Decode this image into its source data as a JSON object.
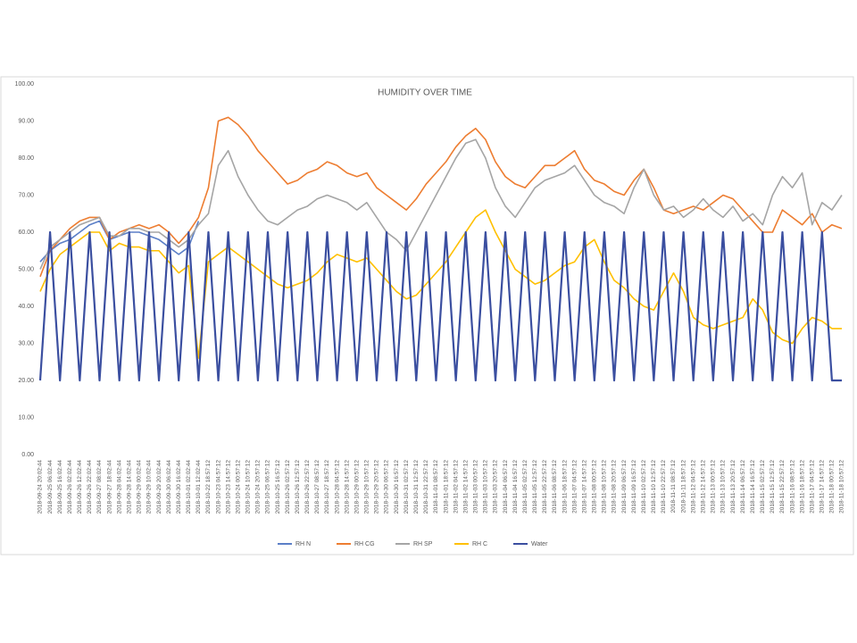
{
  "chart_data": {
    "type": "line",
    "title": "HUMIDITY OVER TIME",
    "categories": [
      "2018-09-24 20:02:44",
      "2018-09-25 06:02:44",
      "2018-09-25 16:02:44",
      "2018-09-26 02:02:44",
      "2018-09-26 12:02:44",
      "2018-09-26 22:02:44",
      "2018-09-27 08:02:44",
      "2018-09-27 18:02:44",
      "2018-09-28 04:02:44",
      "2018-09-28 14:02:44",
      "2018-09-29 00:02:44",
      "2018-09-29 10:02:44",
      "2018-09-29 20:02:44",
      "2018-09-30 06:02:44",
      "2018-09-30 16:02:44",
      "2018-10-01 02:02:44",
      "2018-10-01 12:02:44",
      "2018-10-22 18:57:12",
      "2018-10-23 04:57:12",
      "2018-10-23 14:57:12",
      "2018-10-24 00:57:12",
      "2018-10-24 10:57:12",
      "2018-10-24 20:57:12",
      "2018-10-25 06:57:12",
      "2018-10-25 16:57:12",
      "2018-10-26 02:57:12",
      "2018-10-26 12:57:12",
      "2018-10-26 22:57:12",
      "2018-10-27 08:57:12",
      "2018-10-27 18:57:12",
      "2018-10-28 04:57:12",
      "2018-10-28 14:57:12",
      "2018-10-29 00:57:12",
      "2018-10-29 10:57:12",
      "2018-10-29 20:57:12",
      "2018-10-30 06:57:12",
      "2018-10-30 16:57:12",
      "2018-10-31 02:57:12",
      "2018-10-31 12:57:12",
      "2018-10-31 22:57:12",
      "2018-11-01 08:57:12",
      "2018-11-01 18:57:12",
      "2018-11-02 04:57:12",
      "2018-11-02 14:57:12",
      "2018-11-03 00:57:12",
      "2018-11-03 10:57:12",
      "2018-11-03 20:57:12",
      "2018-11-04 06:57:12",
      "2018-11-04 16:57:12",
      "2018-11-05 02:57:12",
      "2018-11-05 12:57:12",
      "2018-11-05 22:57:12",
      "2018-11-06 08:57:12",
      "2018-11-06 18:57:12",
      "2018-11-07 04:57:12",
      "2018-11-07 14:57:12",
      "2018-11-08 00:57:12",
      "2018-11-08 10:57:12",
      "2018-11-08 20:57:12",
      "2018-11-09 06:57:12",
      "2018-11-09 16:57:12",
      "2018-11-10 02:57:12",
      "2018-11-10 12:57:12",
      "2018-11-10 22:57:12",
      "2018-11-11 08:57:12",
      "2018-11-11 18:57:12",
      "2018-11-12 04:57:12",
      "2018-11-12 14:57:12",
      "2018-11-13 00:57:12",
      "2018-11-13 10:57:12",
      "2018-11-13 20:57:12",
      "2018-11-14 06:57:12",
      "2018-11-14 16:57:12",
      "2018-11-15 02:57:12",
      "2018-11-15 12:57:12",
      "2018-11-15 22:57:12",
      "2018-11-16 08:57:12",
      "2018-11-16 18:57:12",
      "2018-11-17 04:57:12",
      "2018-11-17 14:57:12",
      "2018-11-18 00:57:12",
      "2018-11-18 10:57:12"
    ],
    "series": [
      {
        "name": "RH N",
        "color": "#5b7fc7",
        "values": [
          52,
          55,
          57,
          58,
          60,
          62,
          63,
          58,
          59,
          60,
          60,
          59,
          58,
          56,
          54,
          56,
          63,
          null,
          null,
          null,
          null,
          null,
          null,
          null,
          null,
          null,
          null,
          null,
          null,
          null,
          null,
          null,
          null,
          null,
          null,
          null,
          null,
          null,
          null,
          null,
          null,
          null,
          null,
          null,
          null,
          null,
          null,
          null,
          null,
          null,
          null,
          null,
          null,
          null,
          null,
          null,
          null,
          null,
          null,
          null,
          null,
          null,
          null,
          null,
          null,
          null,
          null,
          null,
          null,
          null,
          null,
          null,
          null,
          null,
          null,
          null,
          null,
          null,
          null,
          null,
          null,
          null
        ]
      },
      {
        "name": "RH CG",
        "color": "#ed7d31",
        "values": [
          48,
          55,
          58,
          61,
          63,
          64,
          64,
          58,
          60,
          61,
          62,
          61,
          62,
          60,
          57,
          60,
          64,
          72,
          90,
          91,
          89,
          86,
          82,
          79,
          76,
          73,
          74,
          76,
          77,
          79,
          78,
          76,
          75,
          76,
          72,
          70,
          68,
          66,
          69,
          73,
          76,
          79,
          83,
          86,
          88,
          85,
          79,
          75,
          73,
          72,
          75,
          78,
          78,
          80,
          82,
          77,
          74,
          73,
          71,
          70,
          74,
          77,
          72,
          66,
          65,
          66,
          67,
          66,
          68,
          70,
          69,
          66,
          63,
          60,
          60,
          66,
          64,
          62,
          65,
          60,
          62,
          61
        ]
      },
      {
        "name": "RH SP",
        "color": "#a5a5a5",
        "values": [
          50,
          56,
          58,
          60,
          62,
          63,
          64,
          59,
          59,
          61,
          61,
          60,
          60,
          58,
          56,
          58,
          62,
          65,
          78,
          82,
          75,
          70,
          66,
          63,
          62,
          64,
          66,
          67,
          69,
          70,
          69,
          68,
          66,
          68,
          64,
          60,
          58,
          55,
          60,
          65,
          70,
          75,
          80,
          84,
          85,
          80,
          72,
          67,
          64,
          68,
          72,
          74,
          75,
          76,
          78,
          74,
          70,
          68,
          67,
          65,
          72,
          77,
          70,
          66,
          67,
          64,
          66,
          69,
          66,
          64,
          67,
          63,
          65,
          62,
          70,
          75,
          72,
          76,
          62,
          68,
          66,
          70
        ]
      },
      {
        "name": "RH C",
        "color": "#ffc000",
        "values": [
          44,
          50,
          54,
          56,
          58,
          60,
          60,
          55,
          57,
          56,
          56,
          55,
          55,
          52,
          49,
          51,
          26,
          52,
          54,
          56,
          54,
          52,
          50,
          48,
          46,
          45,
          46,
          47,
          49,
          52,
          54,
          53,
          52,
          53,
          50,
          47,
          44,
          42,
          43,
          46,
          49,
          52,
          56,
          60,
          64,
          66,
          60,
          55,
          50,
          48,
          46,
          47,
          49,
          51,
          52,
          56,
          58,
          52,
          47,
          45,
          42,
          40,
          39,
          44,
          49,
          44,
          37,
          35,
          34,
          35,
          36,
          37,
          42,
          39,
          33,
          31,
          30,
          34,
          37,
          36,
          34,
          34
        ]
      },
      {
        "name": "Water",
        "color": "#3b4fa0",
        "values": [
          20,
          60,
          20,
          60,
          20,
          60,
          20,
          60,
          20,
          60,
          20,
          60,
          20,
          60,
          20,
          60,
          20,
          60,
          20,
          60,
          20,
          60,
          20,
          60,
          20,
          60,
          20,
          60,
          20,
          60,
          20,
          60,
          20,
          60,
          20,
          60,
          20,
          60,
          20,
          60,
          20,
          60,
          20,
          60,
          20,
          60,
          20,
          60,
          20,
          60,
          20,
          60,
          20,
          60,
          20,
          60,
          20,
          60,
          20,
          60,
          20,
          60,
          20,
          60,
          20,
          60,
          20,
          60,
          20,
          60,
          20,
          60,
          20,
          60,
          20,
          60,
          20,
          60,
          20,
          60,
          20,
          20
        ]
      }
    ],
    "ylim": [
      0,
      100
    ],
    "yticks": [
      {
        "value": 0,
        "label": "0.00"
      },
      {
        "value": 10,
        "label": "10.00"
      },
      {
        "value": 20,
        "label": "20.00"
      },
      {
        "value": 30,
        "label": "30.00"
      },
      {
        "value": 40,
        "label": "40.00"
      },
      {
        "value": 50,
        "label": "50.00"
      },
      {
        "value": 60,
        "label": "60.00"
      },
      {
        "value": 70,
        "label": "70.00"
      },
      {
        "value": 80,
        "label": "80.00"
      },
      {
        "value": 90,
        "label": "90.00"
      },
      {
        "value": 100,
        "label": "100.00"
      }
    ],
    "grid": false,
    "legend": "bottom"
  }
}
